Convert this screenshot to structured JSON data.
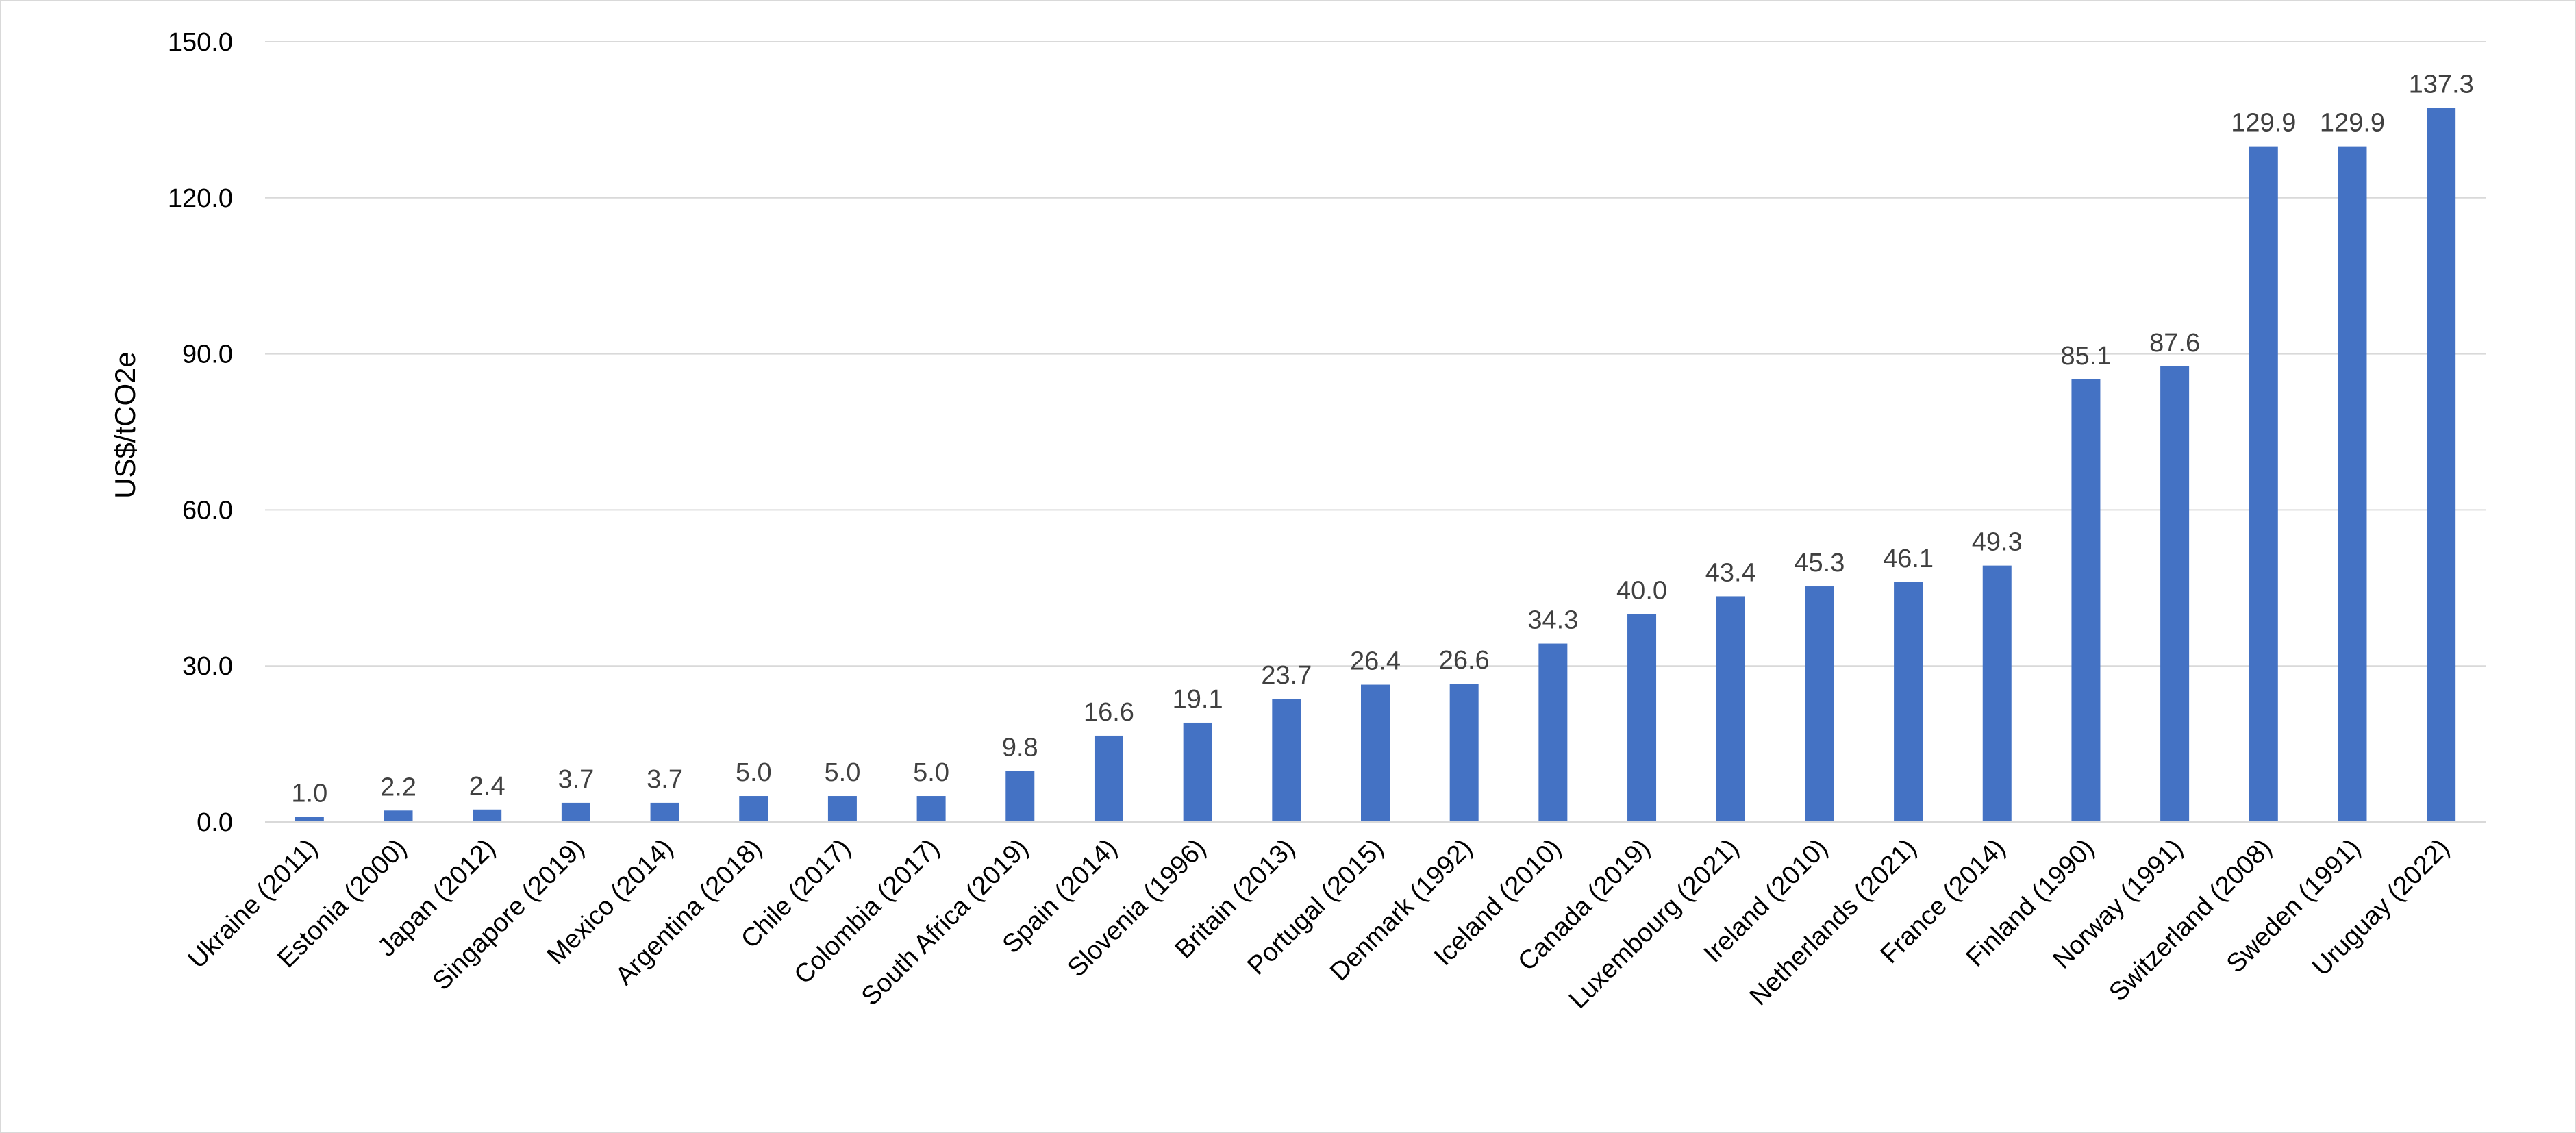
{
  "chart_data": {
    "type": "bar",
    "title": "",
    "xlabel": "",
    "ylabel": "US$/tCO2e",
    "ylim": [
      0,
      150
    ],
    "yticks": [
      "0.0",
      "30.0",
      "60.0",
      "90.0",
      "120.0",
      "150.0"
    ],
    "grid": true,
    "legend": "none",
    "bar_color": "#4472c4",
    "categories": [
      "Ukraine (2011)",
      "Estonia (2000)",
      "Japan (2012)",
      "Singapore (2019)",
      "Mexico (2014)",
      "Argentina (2018)",
      "Chile (2017)",
      "Colombia (2017)",
      "South Africa (2019)",
      "Spain (2014)",
      "Slovenia (1996)",
      "Britain (2013)",
      "Portugal (2015)",
      "Denmark (1992)",
      "Iceland (2010)",
      "Canada (2019)",
      "Luxembourg (2021)",
      "Ireland (2010)",
      "Netherlands (2021)",
      "France (2014)",
      "Finland (1990)",
      "Norway (1991)",
      "Switzerland (2008)",
      "Sweden (1991)",
      "Uruguay (2022)"
    ],
    "values": [
      1.0,
      2.2,
      2.4,
      3.7,
      3.7,
      5.0,
      5.0,
      5.0,
      9.8,
      16.6,
      19.1,
      23.7,
      26.4,
      26.6,
      34.3,
      40.0,
      43.4,
      45.3,
      46.1,
      49.3,
      85.1,
      87.6,
      129.9,
      129.9,
      137.3
    ],
    "data_labels": [
      "1.0",
      "2.2",
      "2.4",
      "3.7",
      "3.7",
      "5.0",
      "5.0",
      "5.0",
      "9.8",
      "16.6",
      "19.1",
      "23.7",
      "26.4",
      "26.6",
      "34.3",
      "40.0",
      "43.4",
      "45.3",
      "46.1",
      "49.3",
      "85.1",
      "87.6",
      "129.9",
      "129.9",
      "137.3"
    ]
  }
}
